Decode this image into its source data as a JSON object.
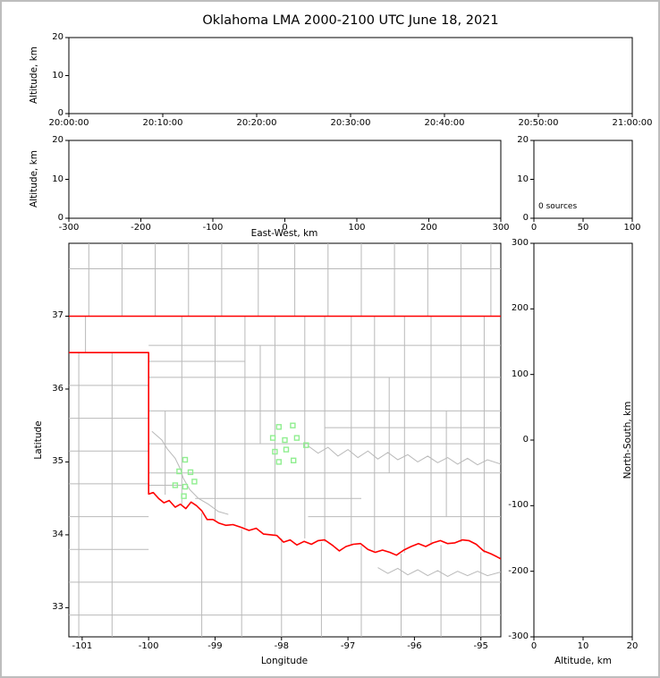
{
  "figure": {
    "title": "Oklahoma LMA 2000-2100 UTC June 18, 2021"
  },
  "colors": {
    "state_border": "#ff0000",
    "county": "#b9b9b9",
    "river": "#b9b9b9",
    "station": "#90EE90",
    "axis": "#000000"
  },
  "chart_data": [
    {
      "id": "time_height",
      "type": "scatter",
      "ylabel": "Altitude, km",
      "yticks": [
        0,
        10,
        20
      ],
      "ylim": [
        0,
        20
      ],
      "xticklabels": [
        "20:00:00",
        "20:10:00",
        "20:20:00",
        "20:30:00",
        "20:40:00",
        "20:50:00",
        "21:00:00"
      ],
      "points": []
    },
    {
      "id": "ew_height",
      "type": "scatter",
      "xlabel": "East-West, km",
      "ylabel": "Altitude, km",
      "xticks": [
        -300,
        -200,
        -100,
        0,
        100,
        200,
        300
      ],
      "xlim": [
        -300,
        300
      ],
      "yticks": [
        0,
        10,
        20
      ],
      "ylim": [
        0,
        20
      ],
      "points": []
    },
    {
      "id": "alt_histogram",
      "type": "line",
      "annotation": "0 sources",
      "xticks": [
        0,
        50,
        100
      ],
      "xlim": [
        0,
        100
      ],
      "yticks": [
        0,
        10,
        20
      ],
      "ylim": [
        0,
        20
      ],
      "points": []
    },
    {
      "id": "plan_view",
      "type": "scatter",
      "xlabel": "Longitude",
      "ylabel": "Latitude",
      "xticks": [
        -101,
        -100,
        -99,
        -98,
        -97,
        -96,
        -95
      ],
      "xlim": [
        -101.2,
        -94.7
      ],
      "yticks": [
        33,
        34,
        35,
        36,
        37
      ],
      "ylim": [
        32.6,
        38.0
      ],
      "map": {
        "state_border": [
          [
            [
              -101.2,
              37.0
            ],
            [
              -94.7,
              37.0
            ]
          ],
          [
            [
              -101.2,
              36.5
            ],
            [
              -100.0,
              36.5
            ],
            [
              -100.0,
              34.56
            ],
            [
              -99.93,
              34.58
            ],
            [
              -99.85,
              34.5
            ],
            [
              -99.77,
              34.44
            ],
            [
              -99.69,
              34.47
            ],
            [
              -99.6,
              34.38
            ],
            [
              -99.52,
              34.42
            ],
            [
              -99.44,
              34.36
            ],
            [
              -99.36,
              34.45
            ],
            [
              -99.28,
              34.4
            ],
            [
              -99.2,
              34.33
            ],
            [
              -99.12,
              34.21
            ],
            [
              -99.03,
              34.21
            ],
            [
              -98.94,
              34.16
            ],
            [
              -98.84,
              34.13
            ],
            [
              -98.73,
              34.14
            ],
            [
              -98.6,
              34.1
            ],
            [
              -98.49,
              34.06
            ],
            [
              -98.38,
              34.09
            ],
            [
              -98.27,
              34.01
            ],
            [
              -98.16,
              34.0
            ],
            [
              -98.07,
              33.99
            ],
            [
              -97.97,
              33.9
            ],
            [
              -97.87,
              33.93
            ],
            [
              -97.77,
              33.86
            ],
            [
              -97.66,
              33.91
            ],
            [
              -97.55,
              33.87
            ],
            [
              -97.45,
              33.92
            ],
            [
              -97.35,
              33.93
            ],
            [
              -97.24,
              33.86
            ],
            [
              -97.13,
              33.78
            ],
            [
              -97.03,
              33.84
            ],
            [
              -96.92,
              33.87
            ],
            [
              -96.81,
              33.88
            ],
            [
              -96.7,
              33.8
            ],
            [
              -96.59,
              33.76
            ],
            [
              -96.48,
              33.79
            ],
            [
              -96.37,
              33.76
            ],
            [
              -96.27,
              33.72
            ],
            [
              -96.16,
              33.79
            ],
            [
              -96.05,
              33.84
            ],
            [
              -95.94,
              33.88
            ],
            [
              -95.83,
              33.84
            ],
            [
              -95.72,
              33.89
            ],
            [
              -95.61,
              33.92
            ],
            [
              -95.5,
              33.88
            ],
            [
              -95.39,
              33.89
            ],
            [
              -95.28,
              33.93
            ],
            [
              -95.18,
              33.92
            ],
            [
              -95.07,
              33.87
            ],
            [
              -94.96,
              33.78
            ],
            [
              -94.85,
              33.74
            ],
            [
              -94.76,
              33.7
            ],
            [
              -94.7,
              33.67
            ]
          ]
        ],
        "counties": {
          "v": [
            [
              -100.9,
              37.0,
              38.0
            ],
            [
              -100.4,
              37.0,
              38.0
            ],
            [
              -99.9,
              37.0,
              38.0
            ],
            [
              -99.4,
              37.0,
              38.0
            ],
            [
              -98.9,
              37.0,
              38.0
            ],
            [
              -98.35,
              37.0,
              38.0
            ],
            [
              -97.8,
              37.0,
              38.0
            ],
            [
              -97.3,
              37.0,
              38.0
            ],
            [
              -96.8,
              37.0,
              38.0
            ],
            [
              -96.3,
              37.0,
              38.0
            ],
            [
              -95.8,
              37.0,
              38.0
            ],
            [
              -95.3,
              37.0,
              38.0
            ],
            [
              -94.85,
              37.0,
              38.0
            ],
            [
              -100.95,
              36.5,
              37.0
            ],
            [
              -101.05,
              32.6,
              36.5
            ],
            [
              -100.55,
              32.6,
              36.5
            ],
            [
              -99.5,
              34.42,
              37.0
            ],
            [
              -99.0,
              34.2,
              37.0
            ],
            [
              -98.55,
              34.1,
              37.0
            ],
            [
              -98.1,
              34.0,
              37.0
            ],
            [
              -97.65,
              33.95,
              37.0
            ],
            [
              -97.35,
              33.9,
              37.0
            ],
            [
              -96.95,
              33.85,
              37.0
            ],
            [
              -96.6,
              33.78,
              37.0
            ],
            [
              -96.15,
              33.75,
              37.0
            ],
            [
              -95.75,
              33.86,
              37.0
            ],
            [
              -95.3,
              33.9,
              37.0
            ],
            [
              -94.95,
              33.75,
              37.0
            ],
            [
              -99.75,
              34.55,
              35.7
            ],
            [
              -98.32,
              35.25,
              36.6
            ],
            [
              -96.38,
              34.85,
              36.16
            ],
            [
              -95.52,
              34.25,
              35.7
            ],
            [
              -99.2,
              32.6,
              34.3
            ],
            [
              -98.6,
              32.6,
              34.08
            ],
            [
              -98.0,
              32.6,
              33.95
            ],
            [
              -97.4,
              32.6,
              33.9
            ],
            [
              -96.8,
              32.6,
              33.85
            ],
            [
              -96.2,
              32.6,
              33.74
            ],
            [
              -95.6,
              32.6,
              33.86
            ],
            [
              -95.0,
              32.6,
              33.76
            ]
          ],
          "h": [
            [
              37.65,
              -101.2,
              -94.7
            ],
            [
              36.6,
              -100.0,
              -94.7
            ],
            [
              36.16,
              -100.0,
              -94.7
            ],
            [
              35.7,
              -100.0,
              -94.7
            ],
            [
              35.25,
              -100.0,
              -94.7
            ],
            [
              34.85,
              -100.0,
              -94.7
            ],
            [
              34.5,
              -99.3,
              -96.8
            ],
            [
              34.25,
              -97.6,
              -94.7
            ],
            [
              36.38,
              -100.0,
              -98.55
            ],
            [
              35.47,
              -97.35,
              -94.7
            ],
            [
              34.68,
              -100.0,
              -99.5
            ],
            [
              36.05,
              -101.2,
              -100.0
            ],
            [
              35.6,
              -101.2,
              -100.0
            ],
            [
              35.15,
              -101.2,
              -100.0
            ],
            [
              34.7,
              -101.2,
              -100.0
            ],
            [
              34.25,
              -101.2,
              -100.0
            ],
            [
              33.8,
              -101.2,
              -100.0
            ],
            [
              33.35,
              -101.2,
              -94.7
            ],
            [
              32.9,
              -101.2,
              -94.7
            ]
          ]
        },
        "rivers": [
          [
            [
              -99.95,
              35.42
            ],
            [
              -99.8,
              35.3
            ],
            [
              -99.72,
              35.18
            ],
            [
              -99.6,
              35.05
            ],
            [
              -99.52,
              34.9
            ],
            [
              -99.48,
              34.78
            ],
            [
              -99.38,
              34.62
            ],
            [
              -99.25,
              34.5
            ],
            [
              -99.1,
              34.42
            ],
            [
              -98.95,
              34.32
            ],
            [
              -98.8,
              34.28
            ]
          ],
          [
            [
              -97.6,
              35.22
            ],
            [
              -97.45,
              35.12
            ],
            [
              -97.3,
              35.2
            ],
            [
              -97.15,
              35.08
            ],
            [
              -97.0,
              35.17
            ],
            [
              -96.85,
              35.06
            ],
            [
              -96.7,
              35.15
            ],
            [
              -96.55,
              35.04
            ],
            [
              -96.4,
              35.13
            ],
            [
              -96.25,
              35.03
            ],
            [
              -96.1,
              35.1
            ],
            [
              -95.95,
              35.0
            ],
            [
              -95.8,
              35.08
            ],
            [
              -95.65,
              34.99
            ],
            [
              -95.5,
              35.06
            ],
            [
              -95.35,
              34.97
            ],
            [
              -95.2,
              35.05
            ],
            [
              -95.05,
              34.96
            ],
            [
              -94.9,
              35.03
            ],
            [
              -94.7,
              34.97
            ]
          ],
          [
            [
              -96.55,
              33.55
            ],
            [
              -96.4,
              33.47
            ],
            [
              -96.25,
              33.54
            ],
            [
              -96.1,
              33.45
            ],
            [
              -95.95,
              33.52
            ],
            [
              -95.8,
              33.44
            ],
            [
              -95.65,
              33.51
            ],
            [
              -95.5,
              33.43
            ],
            [
              -95.35,
              33.5
            ],
            [
              -95.2,
              33.44
            ],
            [
              -95.05,
              33.5
            ],
            [
              -94.9,
              33.44
            ],
            [
              -94.7,
              33.49
            ]
          ]
        ],
        "stations": [
          [
            -99.45,
            35.03
          ],
          [
            -99.54,
            34.87
          ],
          [
            -99.37,
            34.86
          ],
          [
            -99.6,
            34.68
          ],
          [
            -99.45,
            34.66
          ],
          [
            -99.31,
            34.73
          ],
          [
            -99.47,
            34.53
          ],
          [
            -98.04,
            35.48
          ],
          [
            -97.83,
            35.5
          ],
          [
            -98.13,
            35.33
          ],
          [
            -97.95,
            35.3
          ],
          [
            -97.77,
            35.33
          ],
          [
            -98.1,
            35.14
          ],
          [
            -97.93,
            35.17
          ],
          [
            -97.63,
            35.23
          ],
          [
            -98.04,
            35.0
          ],
          [
            -97.82,
            35.02
          ]
        ]
      }
    },
    {
      "id": "ns_height",
      "type": "scatter",
      "xlabel": "Altitude, km",
      "ylabel": "North-South, km",
      "xticks": [
        0,
        10,
        20
      ],
      "xlim": [
        0,
        20
      ],
      "yticks": [
        300,
        200,
        100,
        0,
        -100,
        -200,
        -300
      ],
      "ylim": [
        -300,
        300
      ],
      "points": []
    }
  ]
}
